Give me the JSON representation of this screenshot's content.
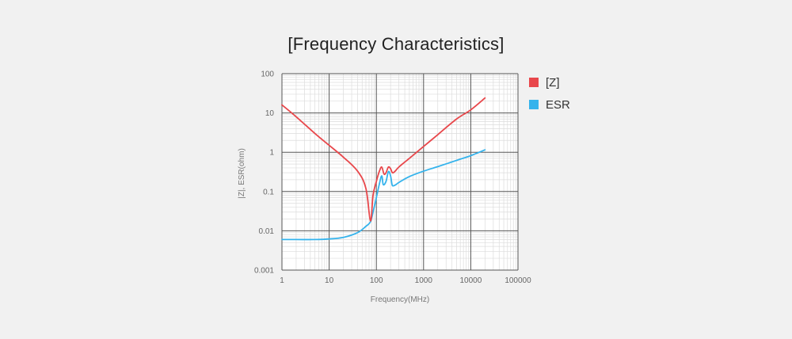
{
  "chart_data": {
    "type": "line",
    "title": "[Frequency Characteristics]",
    "xlabel": "Frequency(MHz)",
    "ylabel": "|Z|, ESR(ohm)",
    "xscale": "log",
    "yscale": "log",
    "xlim": [
      1,
      100000
    ],
    "ylim": [
      0.001,
      100
    ],
    "xticks": [
      "1",
      "10",
      "100",
      "1000",
      "10000",
      "100000"
    ],
    "yticks": [
      "100",
      "10",
      "1",
      "0.1",
      "0.01",
      "0.001"
    ],
    "grid": true,
    "legend_position": "right",
    "series": [
      {
        "name": "[Z]",
        "color": "#e8474b",
        "x": [
          1,
          2,
          5,
          10,
          20,
          40,
          60,
          75,
          85,
          100,
          115,
          130,
          145,
          160,
          180,
          200,
          220,
          250,
          300,
          500,
          1000,
          2000,
          5000,
          10000,
          20000
        ],
        "y": [
          16,
          8,
          3,
          1.5,
          0.75,
          0.33,
          0.12,
          0.018,
          0.08,
          0.18,
          0.32,
          0.42,
          0.28,
          0.3,
          0.42,
          0.38,
          0.3,
          0.33,
          0.42,
          0.7,
          1.4,
          2.8,
          7,
          12,
          24
        ]
      },
      {
        "name": "ESR",
        "color": "#35b3ec",
        "x": [
          1,
          2,
          5,
          10,
          20,
          40,
          60,
          75,
          85,
          100,
          115,
          130,
          140,
          160,
          180,
          200,
          215,
          230,
          260,
          300,
          500,
          1000,
          2000,
          5000,
          10000,
          20000
        ],
        "y": [
          0.006,
          0.006,
          0.006,
          0.0062,
          0.0068,
          0.009,
          0.013,
          0.017,
          0.03,
          0.07,
          0.15,
          0.25,
          0.15,
          0.18,
          0.32,
          0.25,
          0.15,
          0.14,
          0.15,
          0.17,
          0.24,
          0.33,
          0.43,
          0.62,
          0.82,
          1.15
        ]
      }
    ]
  }
}
